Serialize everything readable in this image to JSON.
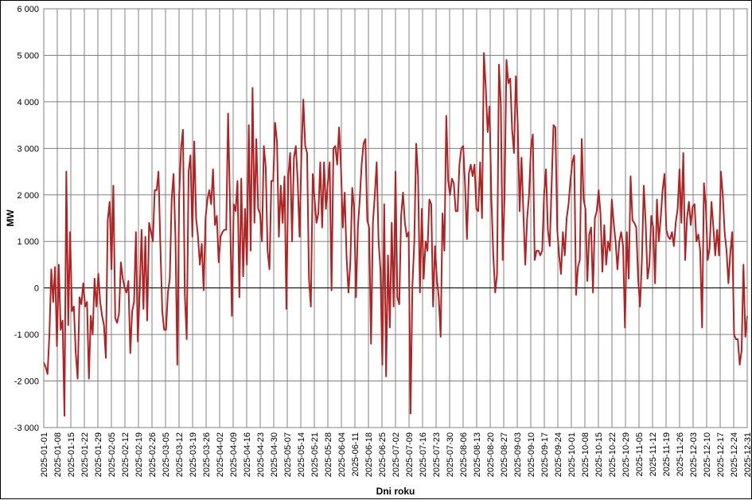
{
  "chart_data": {
    "type": "line",
    "title": "",
    "xlabel": "Dni roku",
    "ylabel": "MW",
    "ylim": [
      -3000,
      6000
    ],
    "yticks": [
      -3000,
      -2000,
      -1000,
      0,
      1000,
      2000,
      3000,
      4000,
      5000,
      6000
    ],
    "ytick_labels": [
      "-3 000",
      "-2 000",
      "-1 000",
      "0",
      "1 000",
      "2 000",
      "3 000",
      "4 000",
      "5 000",
      "6 000"
    ],
    "xlim": [
      "2025-01-01",
      "2025-12-31"
    ],
    "xticks": [
      "2025-01-01",
      "2025-01-08",
      "2025-01-15",
      "2025-01-22",
      "2025-01-29",
      "2025-02-05",
      "2025-02-12",
      "2025-02-19",
      "2025-02-26",
      "2025-03-05",
      "2025-03-12",
      "2025-03-19",
      "2025-03-26",
      "2025-04-02",
      "2025-04-09",
      "2025-04-16",
      "2025-04-23",
      "2025-04-30",
      "2025-05-07",
      "2025-05-14",
      "2025-05-21",
      "2025-05-28",
      "2025-06-04",
      "2025-06-11",
      "2025-06-18",
      "2025-06-25",
      "2025-07-02",
      "2025-07-09",
      "2025-07-16",
      "2025-07-23",
      "2025-07-30",
      "2025-08-06",
      "2025-08-13",
      "2025-08-20",
      "2025-08-27",
      "2025-09-03",
      "2025-09-10",
      "2025-09-17",
      "2025-09-24",
      "2025-10-01",
      "2025-10-08",
      "2025-10-15",
      "2025-10-22",
      "2025-10-29",
      "2025-11-05",
      "2025-11-12",
      "2025-11-19",
      "2025-11-26",
      "2025-12-03",
      "2025-12-10",
      "2025-12-17",
      "2025-12-24",
      "2025-12-31"
    ],
    "grid": true,
    "series": [
      {
        "color": "#b22222",
        "values": [
          -1600,
          -1700,
          -1850,
          -1000,
          400,
          -300,
          450,
          -1250,
          500,
          -900,
          -700,
          -2750,
          2500,
          -800,
          1200,
          -500,
          -400,
          -1400,
          -1950,
          -200,
          -350,
          100,
          -400,
          -300,
          -1950,
          -600,
          -1000,
          200,
          -400,
          300,
          -300,
          -600,
          -800,
          -1500,
          1450,
          1850,
          400,
          2200,
          -650,
          -750,
          -550,
          550,
          200,
          0,
          -100,
          150,
          -1400,
          -500,
          -300,
          1200,
          -1150,
          -100,
          1250,
          -450,
          1100,
          -700,
          1400,
          1200,
          1000,
          2100,
          2100,
          2500,
          900,
          -500,
          -900,
          -900,
          -100,
          200,
          1900,
          2450,
          1100,
          -1650,
          2000,
          3000,
          3400,
          -150,
          -1100,
          2500,
          2850,
          1100,
          3150,
          1500,
          1100,
          500,
          950,
          -50,
          1500,
          1900,
          2100,
          1800,
          2550,
          1350,
          1550,
          550,
          1100,
          1200,
          1250,
          1250,
          3750,
          1800,
          -600,
          1800,
          1650,
          2300,
          -200,
          2350,
          250,
          1700,
          500,
          3500,
          800,
          4300,
          1400,
          3200,
          1700,
          1600,
          1000,
          3050,
          2600,
          800,
          400,
          2300,
          2300,
          3550,
          3150,
          1100,
          2200,
          1400,
          2400,
          -450,
          2400,
          2900,
          1000,
          2800,
          3050,
          2300,
          1100,
          2900,
          4050,
          3050,
          2900,
          200,
          -400,
          2450,
          1900,
          1400,
          1600,
          2700,
          1300,
          2700,
          1700,
          2250,
          2700,
          -50,
          3000,
          3050,
          2650,
          3450,
          2600,
          1300,
          2050,
          650,
          -100,
          550,
          2150,
          1700,
          -200,
          1300,
          1900,
          2650,
          3100,
          3200,
          1450,
          1300,
          -1200,
          1400,
          2000,
          2700,
          1000,
          400,
          -1650,
          1800,
          -1900,
          700,
          -850,
          1400,
          -400,
          2500,
          -200,
          -350,
          1550,
          2050,
          1400,
          1100,
          1200,
          -2700,
          50,
          1000,
          3100,
          2400,
          -100,
          1700,
          200,
          1000,
          800,
          1900,
          1800,
          -400,
          900,
          200,
          -200,
          -1050,
          1600,
          800,
          3700,
          2300,
          2000,
          2350,
          2250,
          1650,
          1650,
          2650,
          3000,
          3050,
          2200,
          1050,
          2450,
          2650,
          2400,
          2650,
          1700,
          1650,
          2700,
          1500,
          5050,
          4300,
          3350,
          3900,
          1900,
          700,
          -100,
          300,
          4800,
          3950,
          600,
          2000,
          4900,
          4400,
          4500,
          3400,
          2900,
          4550,
          3500,
          1650,
          2800,
          1600,
          500,
          1500,
          2000,
          3000,
          3300,
          600,
          800,
          800,
          700,
          800,
          2000,
          2550,
          1250,
          900,
          2200,
          3500,
          3450,
          1250,
          700,
          300,
          1200,
          700,
          1500,
          1800,
          2300,
          2700,
          2850,
          -150,
          450,
          600,
          3200,
          1900,
          1700,
          150,
          1150,
          1300,
          -100,
          1500,
          1650,
          2100,
          1600,
          350,
          1350,
          500,
          1000,
          800,
          1900,
          1400,
          1000,
          400,
          1000,
          1200,
          900,
          -850,
          1200,
          200,
          2400,
          1450,
          1400,
          1300,
          200,
          -400,
          600,
          2200,
          1400,
          200,
          500,
          1550,
          1300,
          100,
          1900,
          1000,
          1500,
          2100,
          2450,
          1250,
          1100,
          1050,
          1200,
          900,
          1400,
          1700,
          2550,
          1400,
          2900,
          600,
          1500,
          1850,
          1350,
          1750,
          1800,
          1000,
          1150,
          800,
          -850,
          2250,
          1750,
          600,
          850,
          1850,
          1300,
          700,
          1250,
          700,
          2500,
          2000,
          1200,
          800,
          100,
          750,
          1200,
          -1000,
          -1100,
          -1100,
          -1650,
          -1350,
          500,
          -1050,
          -600
        ]
      }
    ]
  }
}
